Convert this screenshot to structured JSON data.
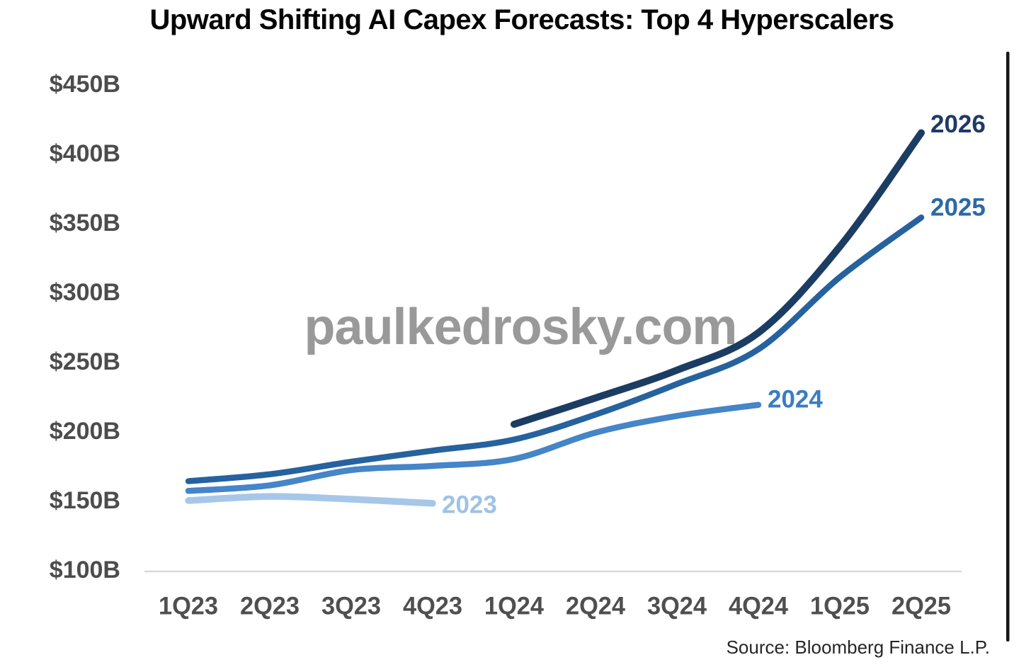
{
  "title": "Upward Shifting AI Capex Forecasts: Top 4 Hyperscalers",
  "watermark": "paulkedrosky.com",
  "source": "Source: Bloomberg Finance L.P.",
  "chart_data": {
    "type": "line",
    "title": "Upward Shifting AI Capex Forecasts: Top 4 Hyperscalers",
    "units": "USD billions",
    "categories": [
      "1Q23",
      "2Q23",
      "3Q23",
      "4Q23",
      "1Q24",
      "2Q24",
      "3Q24",
      "4Q24",
      "1Q25",
      "2Q25"
    ],
    "ylim": [
      100,
      450
    ],
    "y_ticks": [
      450,
      400,
      350,
      300,
      250,
      200,
      150,
      100
    ],
    "y_tick_labels": [
      "$450B",
      "$400B",
      "$350B",
      "$300B",
      "$250B",
      "$200B",
      "$150B",
      "$100B"
    ],
    "grid": false,
    "legend_position": "end-of-line year labels",
    "series": [
      {
        "name": "2026",
        "start_quarter": "1Q24",
        "color": "#1b3c63",
        "label_color": "#1e3a66",
        "values": [
          205,
          224,
          244,
          271,
          333,
          415
        ]
      },
      {
        "name": "2025",
        "start_quarter": "1Q23",
        "color": "#26629e",
        "label_color": "#2a6aa5",
        "values": [
          164,
          169,
          178,
          186,
          194,
          212,
          234,
          259,
          311,
          354
        ]
      },
      {
        "name": "2024",
        "start_quarter": "1Q23",
        "color": "#4585c8",
        "label_color": "#3c7cc2",
        "values": [
          157,
          161,
          172,
          175,
          180,
          199,
          211,
          219
        ]
      },
      {
        "name": "2023",
        "start_quarter": "1Q23",
        "color": "#a7c7e9",
        "label_color": "#9fc2e6",
        "values": [
          150,
          153,
          151,
          148
        ]
      }
    ]
  }
}
